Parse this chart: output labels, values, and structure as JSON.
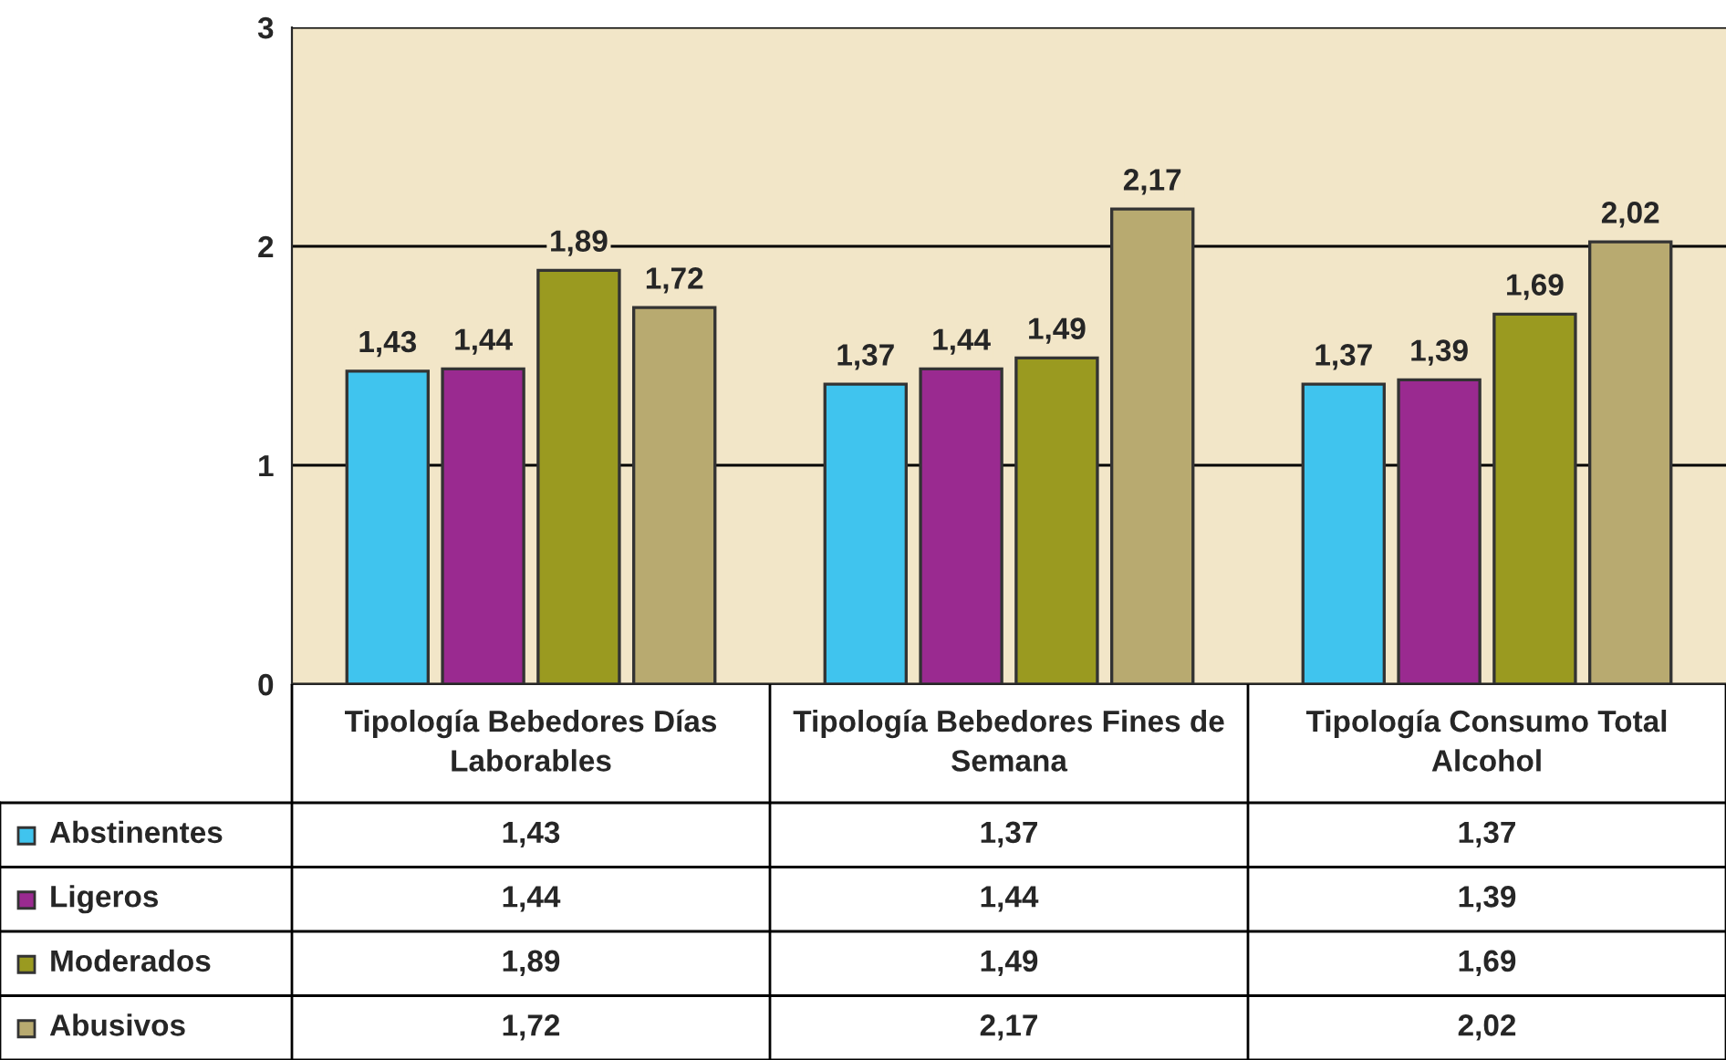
{
  "chart_data": {
    "type": "bar",
    "categories": [
      "Tipología Bebedores Días Laborables",
      "Tipología Bebedores Fines de Semana",
      "Tipología Consumo Total Alcohol"
    ],
    "series": [
      {
        "name": "Abstinentes",
        "color": "#40c4ee",
        "values": [
          1.43,
          1.37,
          1.37
        ],
        "value_labels": [
          "1,43",
          "1,37",
          "1,37"
        ]
      },
      {
        "name": "Ligeros",
        "color": "#9a2a90",
        "values": [
          1.44,
          1.44,
          1.39
        ],
        "value_labels": [
          "1,44",
          "1,44",
          "1,39"
        ]
      },
      {
        "name": "Moderados",
        "color": "#9a9a20",
        "values": [
          1.89,
          1.49,
          1.69
        ],
        "value_labels": [
          "1,89",
          "1,49",
          "1,69"
        ]
      },
      {
        "name": "Abusivos",
        "color": "#b8aa70",
        "values": [
          1.72,
          2.17,
          2.02
        ],
        "value_labels": [
          "1,72",
          "2,17",
          "2,02"
        ]
      }
    ],
    "ylim": [
      0,
      3
    ],
    "yticks": [
      0,
      1,
      2,
      3
    ],
    "grid": "y",
    "legend": "bottom"
  }
}
